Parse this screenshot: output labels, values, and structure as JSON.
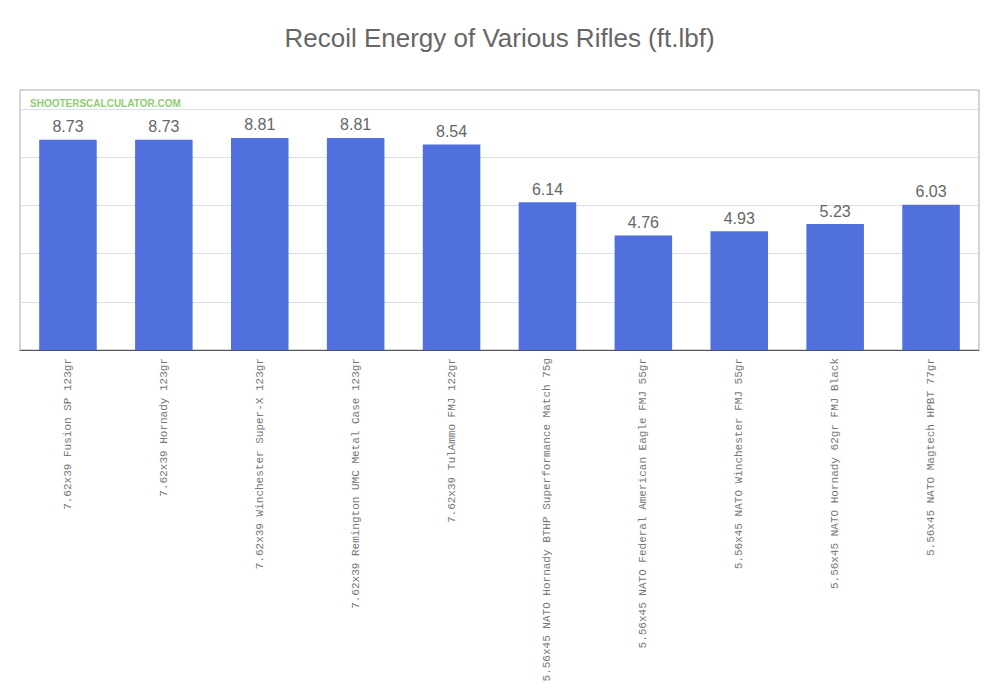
{
  "chart_data": {
    "type": "bar",
    "title": "Recoil Energy of Various Rifles (ft.lbf)",
    "categories": [
      "7.62x39 Fusion SP 123gr",
      "7.62x39 Hornady 123gr",
      "7.62x39 Winchester Super-X 123gr",
      "7.62x39 Remington UMC Metal Case 123gr",
      "7.62x39 TulAmmo FMJ 122gr",
      "5.56x45 NATO Hornady BTHP Superformance Match 75g",
      "5.56x45 NATO Federal American Eagle FMJ 55gr",
      "5.56x45 NATO Winchester FMJ 55gr",
      "5.56x45 NATO Hornady 62gr FMJ Black",
      "5.56x45 NATO Magtech HPBT 77gr"
    ],
    "values": [
      8.73,
      8.73,
      8.81,
      8.81,
      8.54,
      6.14,
      4.76,
      4.93,
      5.23,
      6.03
    ],
    "data_labels": true,
    "ylim": [
      0,
      10.8
    ],
    "yticks": [
      2,
      4,
      6,
      8,
      10
    ],
    "grid": true,
    "tick_labels": "x",
    "annotations": [
      {
        "text": "SHOOTERSCALCULATOR.COM"
      }
    ]
  }
}
